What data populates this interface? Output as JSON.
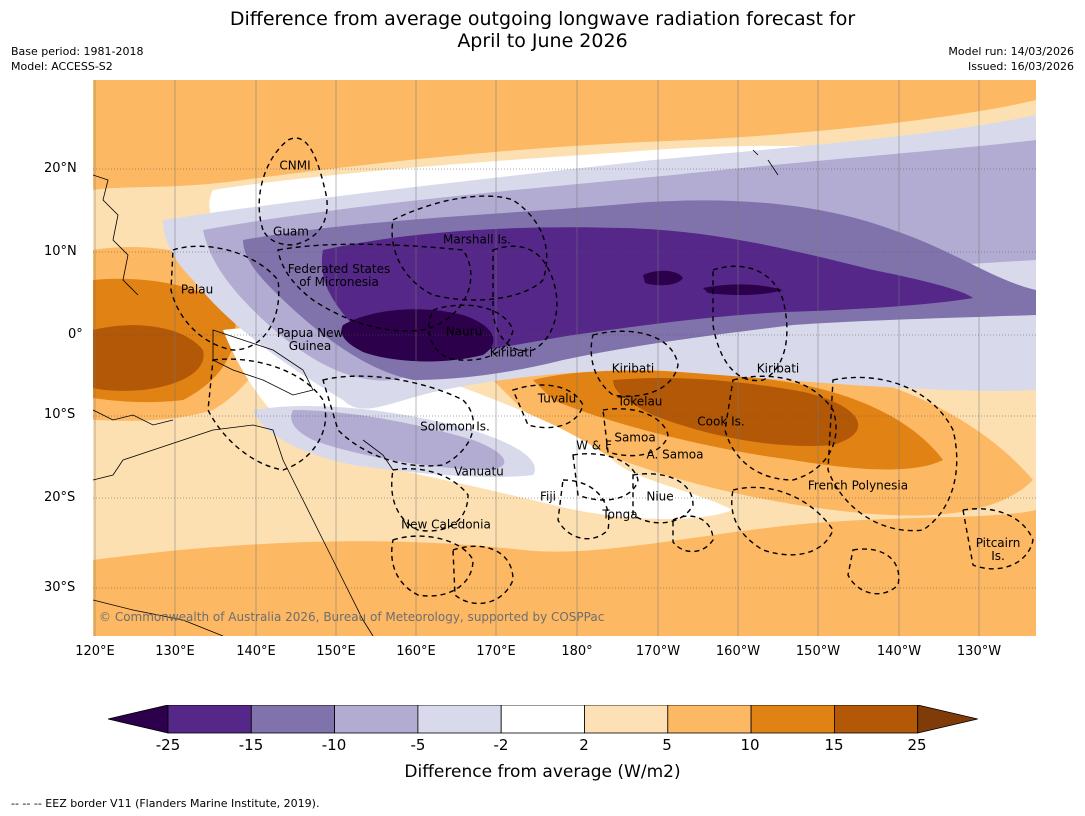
{
  "title": {
    "line1": "Difference from average outgoing longwave radiation forecast for",
    "line2": "April to June 2026"
  },
  "meta": {
    "base_period": "Base period: 1981-2018",
    "model": "Model: ACCESS-S2",
    "model_run": "Model run: 14/03/2026",
    "issued": "Issued: 16/03/2026"
  },
  "map": {
    "copyright": "© Commonwealth of Australia 2026, Bureau of Meteorology, supported by COSPPac",
    "lat_labels": [
      "20°N",
      "10°N",
      "0°",
      "10°S",
      "20°S",
      "30°S"
    ],
    "lon_labels": [
      "120°E",
      "130°E",
      "140°E",
      "150°E",
      "160°E",
      "170°E",
      "180°",
      "170°W",
      "160°W",
      "150°W",
      "140°W",
      "130°W"
    ],
    "regions": {
      "cnmi": "CNMI",
      "guam": "Guam",
      "marshall": "Marshall Is.",
      "fsm_line1": "Federated States",
      "fsm_line2": "of Micronesia",
      "palau": "Palau",
      "png_line1": "Papua New",
      "png_line2": "Guinea",
      "nauru": "Nauru",
      "kiribati_west": "Kiribati",
      "kiribati_central": "Kiribati",
      "kiribati_east": "Kiribati",
      "tuvalu": "Tuvalu",
      "tokelau": "Tokelau",
      "cook": "Cook Is.",
      "solomon": "Solomon Is.",
      "samoa": "Samoa",
      "wf": "W & F",
      "asamoa": "A. Samoa",
      "vanuatu": "Vanuatu",
      "fiji": "Fiji",
      "niue": "Niue",
      "french_polynesia": "French Polynesia",
      "tonga": "Tonga",
      "new_caledonia": "New Caledonia",
      "pitcairn_line1": "Pitcairn",
      "pitcairn_line2": "Is."
    }
  },
  "colorbar": {
    "ticks": [
      "-25",
      "-15",
      "-10",
      "-5",
      "-2",
      "2",
      "5",
      "10",
      "15",
      "25"
    ],
    "colors": [
      "#2d004b",
      "#542788",
      "#8073ac",
      "#b2abd2",
      "#d8daeb",
      "#ffffff",
      "#fee0b6",
      "#fdb863",
      "#e08214",
      "#b35806",
      "#7f3b08"
    ],
    "label": "Difference from average (W/m2)"
  },
  "footnote": "--  --  -- EEZ border V11 (Flanders Marine Institute, 2019)."
}
